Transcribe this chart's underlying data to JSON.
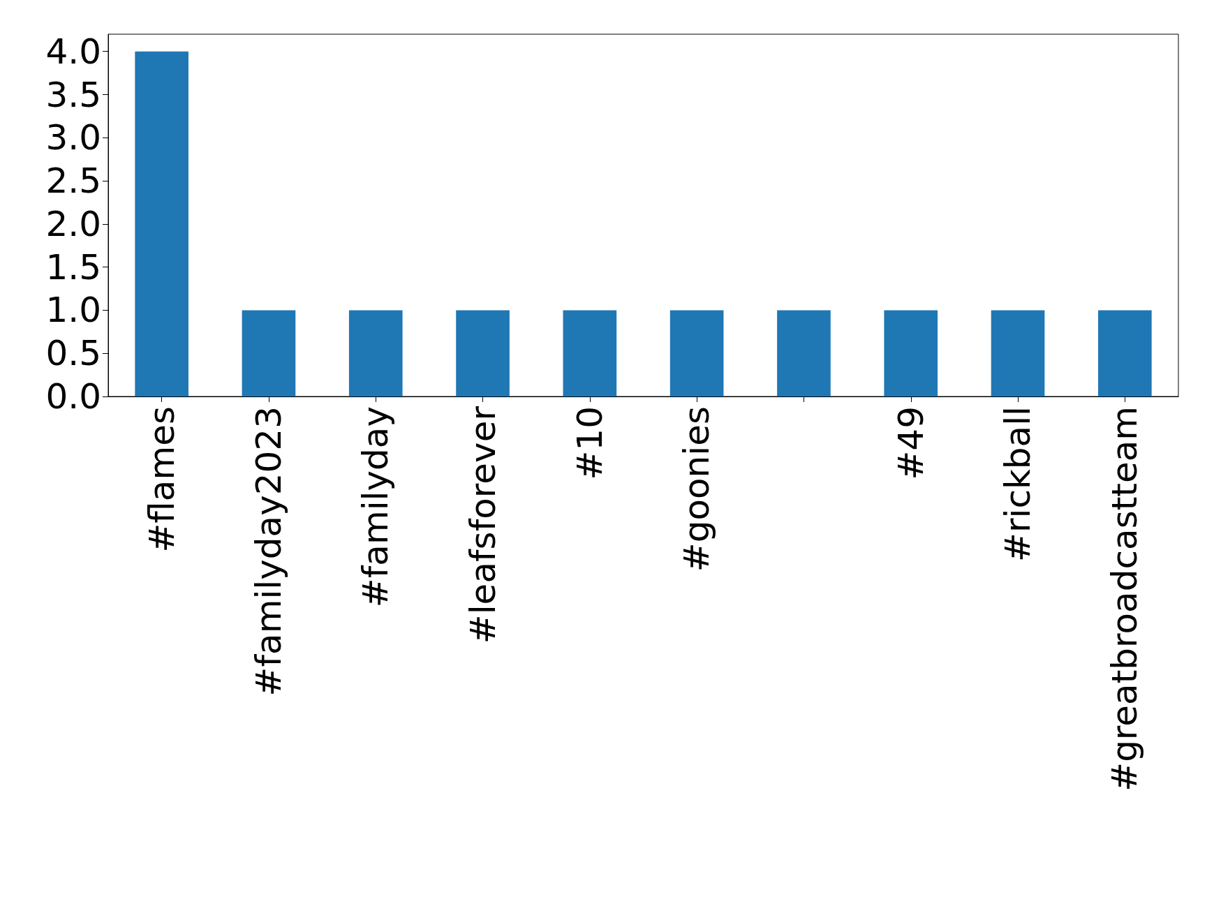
{
  "chart_data": {
    "type": "bar",
    "categories": [
      "#flames",
      "#familyday2023",
      "#familyday",
      "#leafsforever",
      "#10",
      "#goonies",
      null,
      "#49",
      "#rickball",
      "#greatbroadcastteam"
    ],
    "values": [
      4,
      1,
      1,
      1,
      1,
      1,
      1,
      1,
      1,
      1
    ],
    "color": "#1f77b4",
    "ylim": [
      0,
      4.2
    ],
    "yticks": [
      {
        "value": 0,
        "label": "0.0"
      },
      0.5,
      {
        "value": 1,
        "label": "1.0"
      },
      1.5,
      {
        "value": 2,
        "label": "2.0"
      },
      2.5,
      {
        "value": 3,
        "label": "3.0"
      },
      3.5,
      {
        "value": 4,
        "label": "4.0"
      }
    ],
    "grid": false
  }
}
